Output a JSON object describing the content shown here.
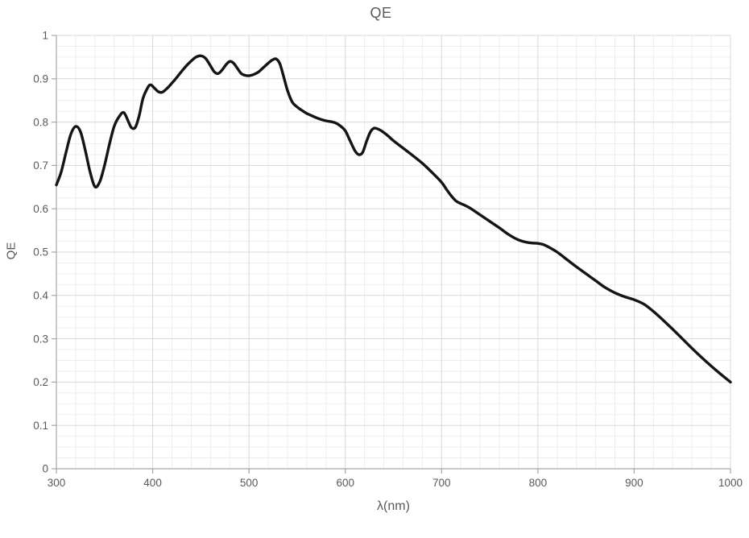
{
  "chart_data": {
    "type": "line",
    "title": "QE",
    "xlabel": "λ(nm)",
    "ylabel": "QE",
    "xlim": [
      300,
      1000
    ],
    "ylim": [
      0,
      1
    ],
    "x_major_step": 100,
    "x_minor_step": 20,
    "y_major_step": 0.1,
    "y_minor_step": 0.025,
    "x_tick_labels": [
      "300",
      "400",
      "500",
      "600",
      "700",
      "800",
      "900",
      "1000"
    ],
    "y_tick_labels": [
      "0",
      "0.1",
      "0.2",
      "0.3",
      "0.4",
      "0.5",
      "0.6",
      "0.7",
      "0.8",
      "0.9",
      "1"
    ],
    "grid": true,
    "legend_position": "none",
    "line_color": "#141414",
    "axis_color": "#a6a6a6",
    "major_grid_color": "#d9d9d9",
    "minor_grid_color": "#ededed",
    "text_color": "#595959",
    "series": [
      {
        "name": "QE",
        "points": [
          [
            300,
            0.655
          ],
          [
            305,
            0.685
          ],
          [
            310,
            0.73
          ],
          [
            315,
            0.772
          ],
          [
            320,
            0.79
          ],
          [
            325,
            0.778
          ],
          [
            330,
            0.735
          ],
          [
            335,
            0.685
          ],
          [
            340,
            0.651
          ],
          [
            345,
            0.662
          ],
          [
            350,
            0.7
          ],
          [
            355,
            0.748
          ],
          [
            360,
            0.79
          ],
          [
            365,
            0.812
          ],
          [
            370,
            0.822
          ],
          [
            375,
            0.8
          ],
          [
            378,
            0.787
          ],
          [
            382,
            0.788
          ],
          [
            386,
            0.815
          ],
          [
            390,
            0.855
          ],
          [
            395,
            0.88
          ],
          [
            398,
            0.886
          ],
          [
            402,
            0.878
          ],
          [
            406,
            0.87
          ],
          [
            410,
            0.869
          ],
          [
            415,
            0.878
          ],
          [
            420,
            0.89
          ],
          [
            425,
            0.903
          ],
          [
            430,
            0.917
          ],
          [
            435,
            0.93
          ],
          [
            440,
            0.941
          ],
          [
            445,
            0.95
          ],
          [
            450,
            0.953
          ],
          [
            455,
            0.947
          ],
          [
            460,
            0.93
          ],
          [
            464,
            0.916
          ],
          [
            468,
            0.912
          ],
          [
            472,
            0.92
          ],
          [
            476,
            0.932
          ],
          [
            480,
            0.94
          ],
          [
            484,
            0.936
          ],
          [
            488,
            0.924
          ],
          [
            492,
            0.912
          ],
          [
            496,
            0.908
          ],
          [
            500,
            0.907
          ],
          [
            505,
            0.91
          ],
          [
            510,
            0.916
          ],
          [
            515,
            0.926
          ],
          [
            520,
            0.936
          ],
          [
            524,
            0.943
          ],
          [
            528,
            0.946
          ],
          [
            532,
            0.935
          ],
          [
            536,
            0.905
          ],
          [
            540,
            0.873
          ],
          [
            545,
            0.846
          ],
          [
            550,
            0.835
          ],
          [
            555,
            0.827
          ],
          [
            560,
            0.82
          ],
          [
            565,
            0.815
          ],
          [
            570,
            0.81
          ],
          [
            575,
            0.806
          ],
          [
            580,
            0.803
          ],
          [
            585,
            0.801
          ],
          [
            590,
            0.798
          ],
          [
            595,
            0.791
          ],
          [
            600,
            0.78
          ],
          [
            605,
            0.757
          ],
          [
            610,
            0.734
          ],
          [
            614,
            0.725
          ],
          [
            618,
            0.73
          ],
          [
            622,
            0.755
          ],
          [
            626,
            0.777
          ],
          [
            630,
            0.786
          ],
          [
            635,
            0.783
          ],
          [
            640,
            0.776
          ],
          [
            645,
            0.767
          ],
          [
            650,
            0.757
          ],
          [
            660,
            0.74
          ],
          [
            670,
            0.723
          ],
          [
            680,
            0.705
          ],
          [
            690,
            0.684
          ],
          [
            700,
            0.661
          ],
          [
            705,
            0.645
          ],
          [
            710,
            0.63
          ],
          [
            715,
            0.618
          ],
          [
            720,
            0.612
          ],
          [
            725,
            0.607
          ],
          [
            730,
            0.601
          ],
          [
            740,
            0.586
          ],
          [
            750,
            0.571
          ],
          [
            760,
            0.556
          ],
          [
            770,
            0.54
          ],
          [
            780,
            0.528
          ],
          [
            790,
            0.522
          ],
          [
            800,
            0.52
          ],
          [
            805,
            0.518
          ],
          [
            810,
            0.513
          ],
          [
            820,
            0.5
          ],
          [
            830,
            0.483
          ],
          [
            840,
            0.466
          ],
          [
            850,
            0.45
          ],
          [
            860,
            0.434
          ],
          [
            870,
            0.418
          ],
          [
            880,
            0.406
          ],
          [
            890,
            0.397
          ],
          [
            900,
            0.39
          ],
          [
            910,
            0.38
          ],
          [
            920,
            0.363
          ],
          [
            930,
            0.343
          ],
          [
            940,
            0.322
          ],
          [
            950,
            0.3
          ],
          [
            960,
            0.278
          ],
          [
            970,
            0.257
          ],
          [
            980,
            0.237
          ],
          [
            990,
            0.218
          ],
          [
            1000,
            0.2
          ]
        ]
      }
    ]
  }
}
